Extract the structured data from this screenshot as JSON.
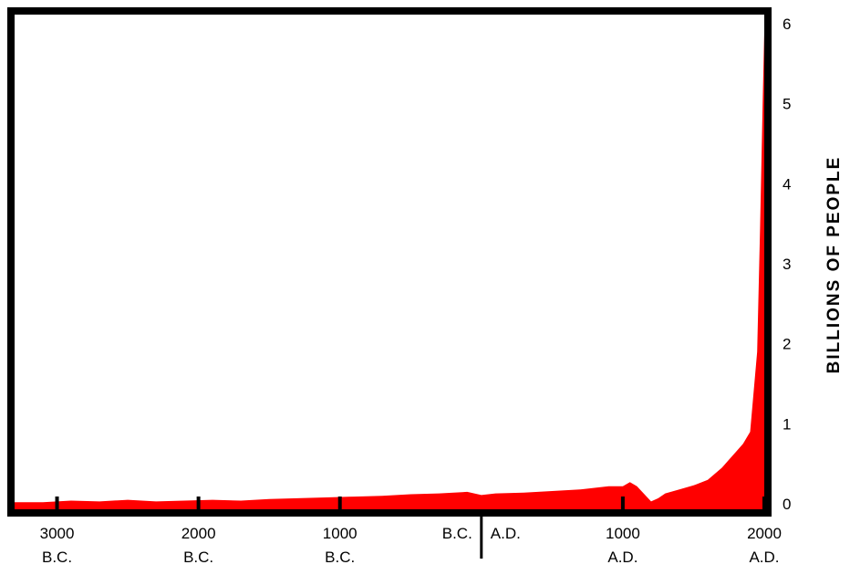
{
  "chart_data": {
    "type": "area",
    "title": "",
    "xlabel": "",
    "ylabel": "BILLIONS OF PEOPLE",
    "y_axis_side": "right",
    "ylim": [
      0,
      6
    ],
    "xlim": [
      -3300,
      2000
    ],
    "grid": false,
    "fill_color": "#ff0000",
    "frame_color": "#000000",
    "y_ticks": [
      "0",
      "1",
      "2",
      "3",
      "4",
      "5",
      "6"
    ],
    "x_ticks": [
      {
        "x": -3000,
        "line1": "3000",
        "line2": "B.C."
      },
      {
        "x": -2000,
        "line1": "2000",
        "line2": "B.C."
      },
      {
        "x": -1000,
        "line1": "1000",
        "line2": "B.C."
      },
      {
        "x": 1000,
        "line1": "1000",
        "line2": "A.D."
      },
      {
        "x": 2000,
        "line1": "2000",
        "line2": "A.D."
      }
    ],
    "era_divider": {
      "x": 0,
      "left_label": "B.C.",
      "right_label": "A.D."
    },
    "series": [
      {
        "x": [
          -3300,
          -3100,
          -3000,
          -2900,
          -2700,
          -2500,
          -2300,
          -2100,
          -1900,
          -1700,
          -1500,
          -1300,
          -1100,
          -900,
          -700,
          -500,
          -300,
          -100,
          0,
          100,
          300,
          500,
          700,
          900,
          1000,
          1050,
          1100,
          1200,
          1250,
          1300,
          1400,
          1500,
          1600,
          1700,
          1750,
          1800,
          1850,
          1900,
          1950,
          1970,
          1990,
          2000
        ],
        "y": [
          0.02,
          0.02,
          0.03,
          0.04,
          0.03,
          0.05,
          0.03,
          0.04,
          0.05,
          0.04,
          0.06,
          0.07,
          0.08,
          0.09,
          0.1,
          0.12,
          0.13,
          0.15,
          0.11,
          0.13,
          0.14,
          0.16,
          0.18,
          0.22,
          0.22,
          0.27,
          0.22,
          0.03,
          0.07,
          0.13,
          0.18,
          0.23,
          0.3,
          0.45,
          0.55,
          0.65,
          0.75,
          0.9,
          1.9,
          3.4,
          5.1,
          5.9
        ]
      }
    ]
  }
}
